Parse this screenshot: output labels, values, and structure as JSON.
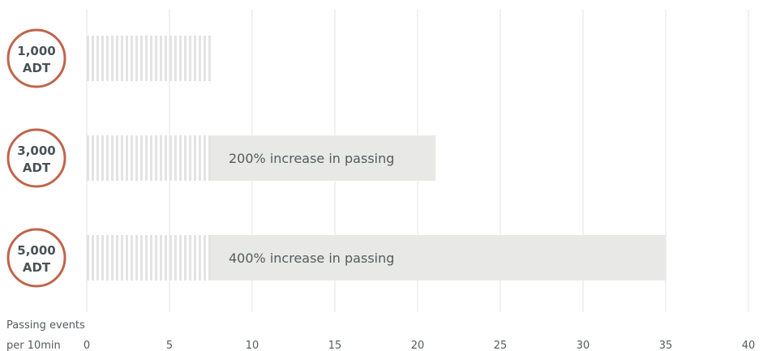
{
  "chart_data": {
    "type": "bar",
    "orientation": "horizontal",
    "categories": [
      [
        "1,000",
        "ADT"
      ],
      [
        "3,000",
        "ADT"
      ],
      [
        "5,000",
        "ADT"
      ]
    ],
    "series": [
      {
        "values": [
          7.5,
          7.5,
          7.5
        ],
        "style": "striped"
      },
      {
        "values": [
          0,
          13.6,
          27.5
        ],
        "style": "solid"
      }
    ],
    "annotations": [
      "",
      "200% increase in passing",
      "400% increase in passing"
    ],
    "xlabel": [
      "Passing events",
      "per 10min"
    ],
    "xticks": [
      0,
      5,
      10,
      15,
      20,
      25,
      30,
      35,
      40
    ],
    "xlim": [
      0,
      40
    ],
    "grid": true,
    "colors": {
      "badge_stroke": "#c0644b",
      "badge_text": "#4a5356",
      "stripe": "#e2e3e2",
      "bar": "#e8e9e7",
      "grid": "#e3e3e3",
      "text": "#555b5e"
    }
  }
}
